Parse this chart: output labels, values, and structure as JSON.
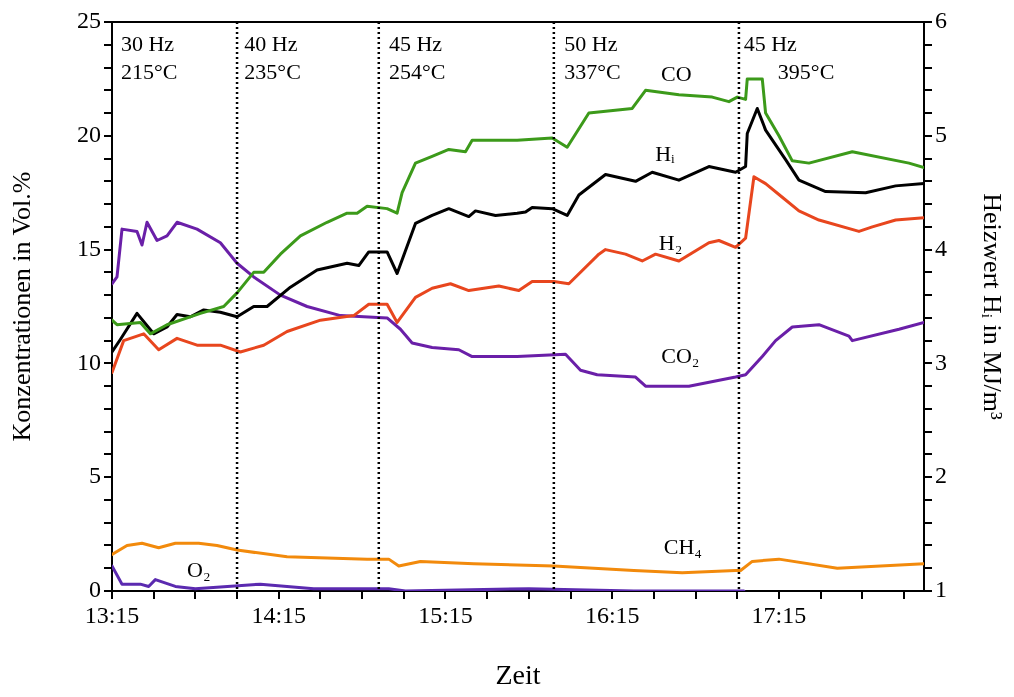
{
  "chart_data": {
    "type": "line",
    "xlabel": "Zeit",
    "ylabel": "Konzentrationen in Vol.%",
    "y2label": "Heizwert Hᵢ in MJ/m³",
    "xlim": [
      13.25,
      18.12
    ],
    "xticks": [
      {
        "value": 13.25,
        "label": "13:15"
      },
      {
        "value": 13.5,
        "label": null
      },
      {
        "value": 13.75,
        "label": null
      },
      {
        "value": 14.0,
        "label": null
      },
      {
        "value": 14.25,
        "label": "14:15"
      },
      {
        "value": 14.5,
        "label": null
      },
      {
        "value": 14.75,
        "label": null
      },
      {
        "value": 15.0,
        "label": null
      },
      {
        "value": 15.25,
        "label": "15:15"
      },
      {
        "value": 15.5,
        "label": null
      },
      {
        "value": 15.75,
        "label": null
      },
      {
        "value": 16.0,
        "label": null
      },
      {
        "value": 16.25,
        "label": "16:15"
      },
      {
        "value": 16.5,
        "label": null
      },
      {
        "value": 16.75,
        "label": null
      },
      {
        "value": 17.0,
        "label": null
      },
      {
        "value": 17.25,
        "label": "17:15"
      },
      {
        "value": 17.5,
        "label": null
      },
      {
        "value": 17.75,
        "label": null
      },
      {
        "value": 18.0,
        "label": null
      }
    ],
    "ylim": [
      0,
      25
    ],
    "yticks": [
      0,
      {
        "value": 1,
        "label": null
      },
      {
        "value": 2,
        "label": null
      },
      {
        "value": 3,
        "label": null
      },
      {
        "value": 4,
        "label": null
      },
      5,
      {
        "value": 6,
        "label": null
      },
      {
        "value": 7,
        "label": null
      },
      {
        "value": 8,
        "label": null
      },
      {
        "value": 9,
        "label": null
      },
      10,
      {
        "value": 11,
        "label": null
      },
      {
        "value": 12,
        "label": null
      },
      {
        "value": 13,
        "label": null
      },
      {
        "value": 14,
        "label": null
      },
      15,
      {
        "value": 16,
        "label": null
      },
      {
        "value": 17,
        "label": null
      },
      {
        "value": 18,
        "label": null
      },
      {
        "value": 19,
        "label": null
      },
      20,
      {
        "value": 21,
        "label": null
      },
      {
        "value": 22,
        "label": null
      },
      {
        "value": 23,
        "label": null
      },
      {
        "value": 24,
        "label": null
      },
      25
    ],
    "y2lim": [
      1,
      6
    ],
    "y2ticks": [
      1,
      {
        "value": 1.2,
        "label": null
      },
      {
        "value": 1.4,
        "label": null
      },
      {
        "value": 1.6,
        "label": null
      },
      {
        "value": 1.8,
        "label": null
      },
      2,
      {
        "value": 2.2,
        "label": null
      },
      {
        "value": 2.4,
        "label": null
      },
      {
        "value": 2.6,
        "label": null
      },
      {
        "value": 2.8,
        "label": null
      },
      3,
      {
        "value": 3.2,
        "label": null
      },
      {
        "value": 3.4,
        "label": null
      },
      {
        "value": 3.6,
        "label": null
      },
      {
        "value": 3.8,
        "label": null
      },
      4,
      {
        "value": 4.2,
        "label": null
      },
      {
        "value": 4.4,
        "label": null
      },
      {
        "value": 4.6,
        "label": null
      },
      {
        "value": 4.8,
        "label": null
      },
      5,
      {
        "value": 5.2,
        "label": null
      },
      {
        "value": 5.4,
        "label": null
      },
      {
        "value": 5.6,
        "label": null
      },
      {
        "value": 5.8,
        "label": null
      },
      6
    ],
    "legend": false,
    "marker": "none",
    "line_style": "solid",
    "series": [
      {
        "name": "CO",
        "color": "#3c9a1a",
        "x": [
          13.25,
          13.28,
          13.42,
          13.48,
          13.58,
          13.78,
          13.92,
          14.0,
          14.1,
          14.16,
          14.26,
          14.38,
          14.54,
          14.66,
          14.72,
          14.78,
          14.9,
          14.96,
          14.99,
          15.07,
          15.17,
          15.27,
          15.37,
          15.41,
          15.55,
          15.68,
          15.89,
          15.98,
          16.11,
          16.37,
          16.45,
          16.65,
          16.85,
          16.95,
          17.0,
          17.05,
          17.06,
          17.15,
          17.17,
          17.25,
          17.33,
          17.43,
          17.69,
          18.03,
          18.12
        ],
        "values": [
          11.9,
          11.7,
          11.8,
          11.3,
          11.7,
          12.2,
          12.5,
          13.1,
          14.0,
          14.0,
          14.8,
          15.6,
          16.2,
          16.6,
          16.6,
          16.9,
          16.8,
          16.6,
          17.5,
          18.8,
          19.1,
          19.4,
          19.3,
          19.8,
          19.8,
          19.8,
          19.9,
          19.5,
          21.0,
          21.2,
          22.0,
          21.8,
          21.7,
          21.5,
          21.7,
          21.6,
          22.5,
          22.5,
          21.0,
          20.0,
          18.9,
          18.8,
          19.3,
          18.8,
          18.6
        ]
      },
      {
        "name": "Hᵢ",
        "color": "#000000",
        "axis": "y2",
        "x": [
          13.25,
          13.3,
          13.4,
          13.5,
          13.58,
          13.64,
          13.72,
          13.8,
          13.9,
          14.0,
          14.1,
          14.18,
          14.32,
          14.48,
          14.66,
          14.73,
          14.79,
          14.9,
          14.96,
          15.07,
          15.17,
          15.27,
          15.39,
          15.43,
          15.55,
          15.68,
          15.73,
          15.77,
          15.89,
          15.98,
          16.05,
          16.21,
          16.39,
          16.49,
          16.65,
          16.83,
          16.99,
          17.05,
          17.06,
          17.12,
          17.17,
          17.29,
          17.37,
          17.53,
          17.77,
          17.95,
          18.12
        ],
        "values": [
          3.1,
          3.21,
          3.44,
          3.26,
          3.32,
          3.43,
          3.41,
          3.47,
          3.45,
          3.41,
          3.5,
          3.5,
          3.67,
          3.82,
          3.88,
          3.86,
          3.98,
          3.98,
          3.79,
          4.23,
          4.3,
          4.36,
          4.29,
          4.34,
          4.3,
          4.32,
          4.33,
          4.37,
          4.36,
          4.3,
          4.48,
          4.66,
          4.6,
          4.68,
          4.61,
          4.73,
          4.68,
          4.73,
          5.02,
          5.24,
          5.05,
          4.79,
          4.61,
          4.51,
          4.5,
          4.56,
          4.58
        ]
      },
      {
        "name": "H₂",
        "color": "#e8461e",
        "x": [
          13.25,
          13.32,
          13.44,
          13.53,
          13.64,
          13.76,
          13.9,
          14.02,
          14.16,
          14.3,
          14.5,
          14.7,
          14.79,
          14.9,
          14.96,
          15.07,
          15.17,
          15.28,
          15.39,
          15.57,
          15.69,
          15.77,
          15.9,
          15.99,
          16.17,
          16.21,
          16.33,
          16.43,
          16.51,
          16.65,
          16.83,
          16.89,
          16.99,
          17.05,
          17.1,
          17.17,
          17.27,
          17.37,
          17.49,
          17.73,
          17.81,
          17.95,
          18.12
        ],
        "values": [
          9.6,
          11.0,
          11.3,
          10.6,
          11.1,
          10.8,
          10.8,
          10.5,
          10.8,
          11.4,
          11.9,
          12.1,
          12.6,
          12.6,
          11.8,
          12.9,
          13.3,
          13.5,
          13.2,
          13.4,
          13.2,
          13.6,
          13.6,
          13.5,
          14.8,
          15.0,
          14.8,
          14.5,
          14.8,
          14.5,
          15.3,
          15.4,
          15.1,
          15.5,
          18.2,
          17.9,
          17.3,
          16.7,
          16.3,
          15.8,
          16.0,
          16.3,
          16.4
        ]
      },
      {
        "name": "CO₂",
        "color": "#6a1fa8",
        "x": [
          13.25,
          13.28,
          13.31,
          13.4,
          13.43,
          13.46,
          13.52,
          13.58,
          13.64,
          13.76,
          13.9,
          14.0,
          14.1,
          14.26,
          14.42,
          14.62,
          14.9,
          14.98,
          15.05,
          15.17,
          15.33,
          15.41,
          15.68,
          15.97,
          16.06,
          16.16,
          16.39,
          16.45,
          16.71,
          16.99,
          17.05,
          17.15,
          17.23,
          17.33,
          17.49,
          17.67,
          17.69,
          17.97,
          18.12
        ],
        "values": [
          13.5,
          13.8,
          15.9,
          15.8,
          15.2,
          16.2,
          15.4,
          15.6,
          16.2,
          15.9,
          15.3,
          14.4,
          13.8,
          13.0,
          12.5,
          12.1,
          12.0,
          11.5,
          10.9,
          10.7,
          10.6,
          10.3,
          10.3,
          10.4,
          9.7,
          9.5,
          9.4,
          9.0,
          9.0,
          9.4,
          9.5,
          10.3,
          11.0,
          11.6,
          11.7,
          11.2,
          11.0,
          11.5,
          11.8
        ]
      },
      {
        "name": "CH₄",
        "color": "#f28a0c",
        "x": [
          13.25,
          13.34,
          13.43,
          13.53,
          13.63,
          13.77,
          13.88,
          14.0,
          14.3,
          14.78,
          14.91,
          14.97,
          15.1,
          15.42,
          15.9,
          16.38,
          16.67,
          16.99,
          17.02,
          17.09,
          17.25,
          17.6,
          18.12
        ],
        "values": [
          1.6,
          2.0,
          2.1,
          1.9,
          2.1,
          2.1,
          2.0,
          1.8,
          1.5,
          1.4,
          1.4,
          1.1,
          1.3,
          1.2,
          1.1,
          0.9,
          0.8,
          0.9,
          0.9,
          1.3,
          1.4,
          1.0,
          1.2
        ]
      },
      {
        "name": "O₂",
        "color": "#5b2ab0",
        "x": [
          13.25,
          13.31,
          13.42,
          13.47,
          13.51,
          13.63,
          13.75,
          14.14,
          14.46,
          14.91,
          15.01,
          15.75,
          16.38,
          17.04
        ],
        "values": [
          1.1,
          0.3,
          0.3,
          0.2,
          0.5,
          0.2,
          0.1,
          0.3,
          0.1,
          0.1,
          0.0,
          0.1,
          0.0,
          0.0
        ]
      }
    ],
    "ref_lines": [
      {
        "axis": "x",
        "value": 14.0,
        "color": "#000000",
        "line_style": "dotted"
      },
      {
        "axis": "x",
        "value": 14.85,
        "color": "#000000",
        "line_style": "dotted"
      },
      {
        "axis": "x",
        "value": 15.9,
        "color": "#000000",
        "line_style": "dotted"
      },
      {
        "axis": "x",
        "value": 17.01,
        "color": "#000000",
        "line_style": "dotted"
      }
    ],
    "annotations": [
      "30 Hz",
      "215°C",
      "40 Hz",
      "235°C",
      "45 Hz",
      "254°C",
      "50 Hz",
      "337°C",
      "45 Hz",
      "395°C"
    ]
  }
}
